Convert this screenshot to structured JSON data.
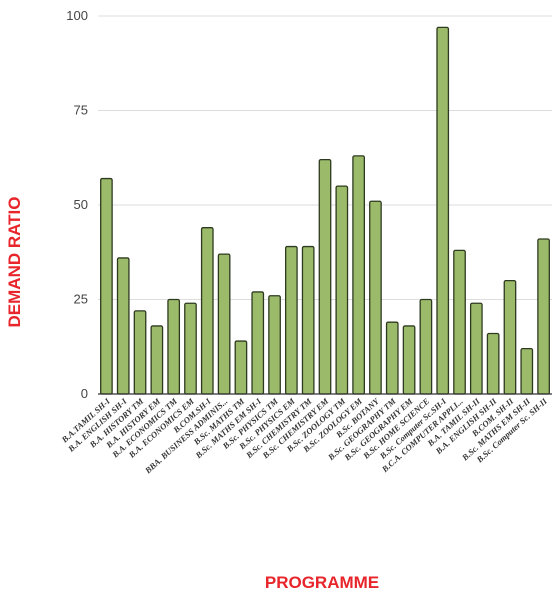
{
  "chart_data": {
    "type": "bar",
    "title": "",
    "xlabel": "PROGRAMME",
    "ylabel": "DEMAND RATIO",
    "ylim": [
      0,
      100
    ],
    "yticks": [
      0,
      25,
      50,
      75,
      100
    ],
    "grid": true,
    "legend": "none",
    "categories": [
      "B.A.TAMIL SH-I",
      "B.A. ENGLISH SH-I",
      "B.A. HISTORY TM",
      "B.A. HISTORY EM",
      "B.A. ECONOMICS TM",
      "B.A. ECONOMICS EM",
      "B.COM.SH-I",
      "BBA. BUSINESS ADMINIS...",
      "B.Sc. MATHS TM",
      "B.Sc. MATHS EM SH-I",
      "B.Sc. PHYSICS TM",
      "B.Sc. PHYSICS EM",
      "B.Sc. CHEMISTRY TM",
      "B.Sc. CHEMISTRY EM",
      "B.Sc. ZOOLOGY TM",
      "B.Sc. ZOOLOGY EM",
      "B.Sc. BOTANY",
      "B.Sc. GEOGRAPHY TM",
      "B.Sc. GEOGRAPHY EM",
      "B.Sc. HOME SCIENCE",
      "B.Sc. Computer Sc.SH-I",
      "B.C.A. COMPUTER APPLI...",
      "B.A. TAMIL SH-II",
      "B.A. ENGLISH SH-II",
      "B.COM. SH-II",
      "B.Sc. MATHS EM SH-II",
      "B.Sc. Computer Sc. SH-II"
    ],
    "values": [
      57,
      36,
      22,
      18,
      25,
      24,
      44,
      37,
      14,
      27,
      26,
      39,
      39,
      62,
      55,
      63,
      51,
      19,
      18,
      25,
      97,
      38,
      24,
      16,
      30,
      12,
      41
    ]
  },
  "colors": {
    "bar_fill": "#9bbb6a",
    "bar_stroke": "#2e3a20",
    "axis_title": "#e8252b",
    "grid": "#dddddd",
    "axis_line": "#333333"
  }
}
